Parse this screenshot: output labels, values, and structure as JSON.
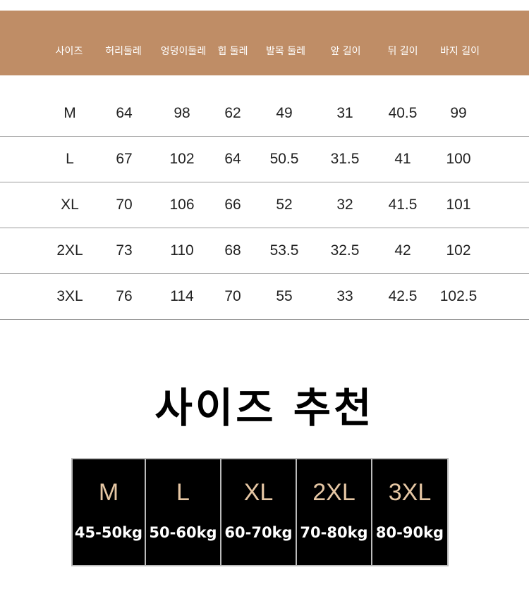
{
  "table": {
    "headers": [
      "사이즈",
      "허리둘레",
      "엉덩이둘레",
      "힙 둘레",
      "발목 둘레",
      "앞 길이",
      "뒤 길이",
      "바지 길이"
    ],
    "rows": [
      [
        "M",
        "64",
        "98",
        "62",
        "49",
        "31",
        "40.5",
        "99"
      ],
      [
        "L",
        "67",
        "102",
        "64",
        "50.5",
        "31.5",
        "41",
        "100"
      ],
      [
        "XL",
        "70",
        "106",
        "66",
        "52",
        "32",
        "41.5",
        "101"
      ],
      [
        "2XL",
        "73",
        "110",
        "68",
        "53.5",
        "32.5",
        "42",
        "102"
      ],
      [
        "3XL",
        "76",
        "114",
        "70",
        "55",
        "33",
        "42.5",
        "102.5"
      ]
    ]
  },
  "recommend": {
    "title": "사이즈 추천",
    "items": [
      {
        "size": "M",
        "weight": "45-50kg"
      },
      {
        "size": "L",
        "weight": "50-60kg"
      },
      {
        "size": "XL",
        "weight": "60-70kg"
      },
      {
        "size": "2XL",
        "weight": "70-80kg"
      },
      {
        "size": "3XL",
        "weight": "80-90kg"
      }
    ]
  },
  "colors": {
    "header_band": "#bf8d66",
    "size_text": "#e6c7a4",
    "box": "#000000"
  }
}
